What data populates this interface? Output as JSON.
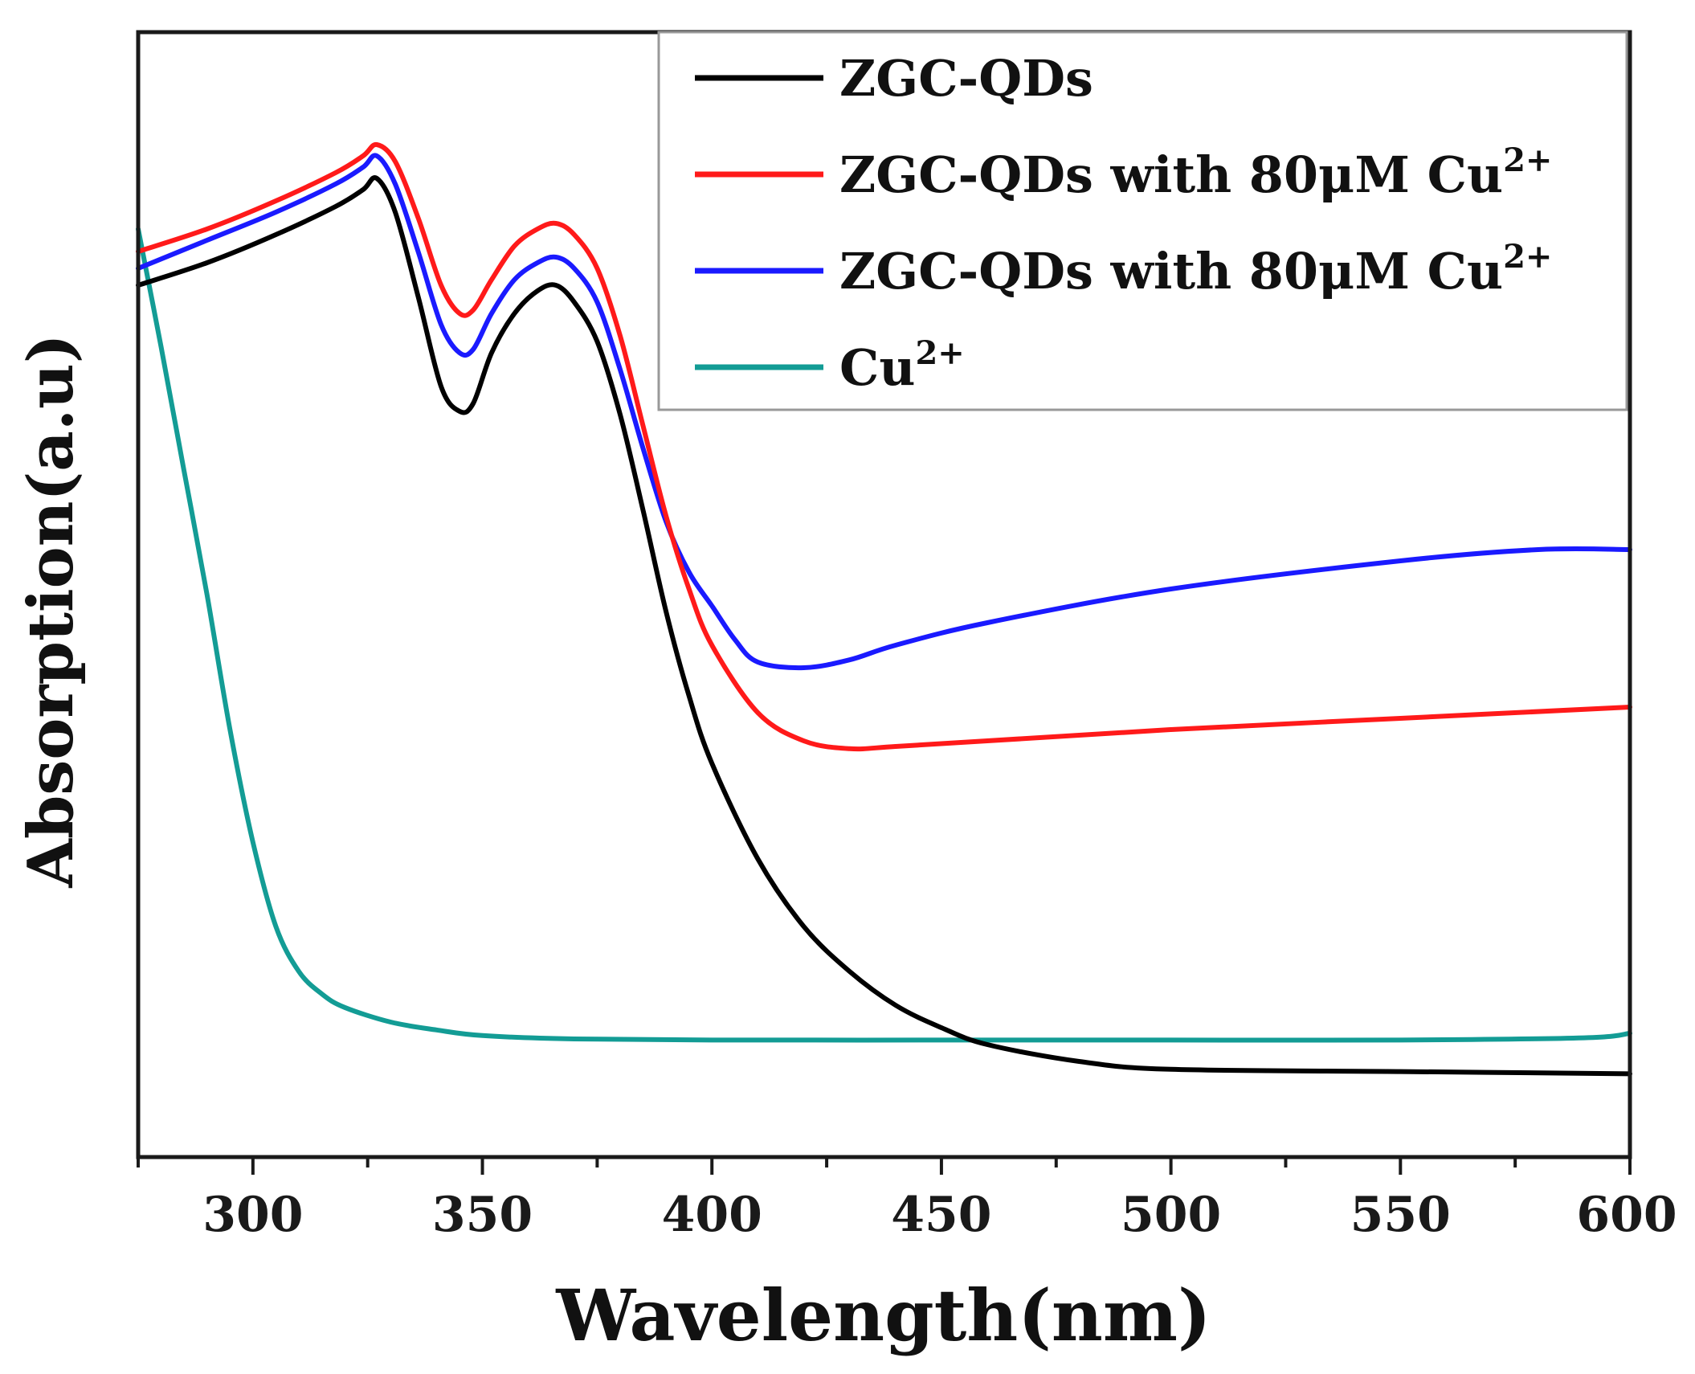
{
  "chart_data": {
    "type": "line",
    "title": "",
    "xlabel": "Wavelength(nm)",
    "ylabel": "Absorption(a.u)",
    "xlim": [
      275,
      600
    ],
    "ylim": [
      0,
      100
    ],
    "x_ticks": [
      300,
      350,
      400,
      450,
      500,
      550,
      600
    ],
    "x_minor_step": 25,
    "y_ticks_labeled": false,
    "grid": false,
    "legend_position": "top-right",
    "series": [
      {
        "name": "ZGC-QDs",
        "color": "#000000",
        "legend_main": "ZGC-QDs",
        "legend_sup": "",
        "x": [
          275,
          290,
          305,
          318,
          324,
          327,
          331,
          336,
          341,
          345,
          348,
          352,
          357,
          362,
          366,
          370,
          375,
          380,
          385,
          390,
          395,
          400,
          410,
          420,
          430,
          440,
          450,
          460,
          480,
          500,
          550,
          600
        ],
        "y": [
          77.5,
          79.5,
          82.0,
          84.5,
          86.0,
          87.0,
          84.0,
          76.5,
          68.5,
          66.3,
          67.0,
          71.5,
          75.0,
          77.0,
          77.5,
          76.0,
          72.5,
          66.0,
          57.5,
          48.5,
          41.0,
          35.0,
          26.5,
          20.5,
          16.5,
          13.5,
          11.5,
          10.0,
          8.5,
          7.8,
          7.6,
          7.4
        ]
      },
      {
        "name": "ZGC-QDs with 80μM Cu2+ (red)",
        "color": "#ff1a1a",
        "legend_main": "ZGC-QDs with 80μM Cu",
        "legend_sup": "2+",
        "x": [
          275,
          290,
          305,
          318,
          324,
          327,
          331,
          336,
          341,
          345,
          348,
          352,
          357,
          362,
          366,
          370,
          375,
          380,
          385,
          390,
          395,
          400,
          410,
          420,
          430,
          440,
          460,
          500,
          550,
          600
        ],
        "y": [
          80.5,
          82.5,
          85.0,
          87.5,
          89.0,
          90.0,
          88.5,
          83.5,
          77.5,
          75.0,
          75.3,
          78.0,
          81.0,
          82.5,
          83.0,
          82.0,
          79.0,
          73.0,
          65.0,
          57.0,
          50.5,
          45.5,
          39.5,
          37.0,
          36.3,
          36.5,
          37.0,
          38.0,
          39.0,
          40.0
        ]
      },
      {
        "name": "ZGC-QDs with 80μM Cu2+ (blue)",
        "color": "#1a1aff",
        "legend_main": "ZGC-QDs with 80μM Cu",
        "legend_sup": "2+",
        "x": [
          275,
          290,
          305,
          318,
          324,
          327,
          331,
          336,
          341,
          345,
          348,
          352,
          357,
          362,
          366,
          370,
          375,
          380,
          385,
          390,
          395,
          400,
          405,
          410,
          420,
          430,
          440,
          460,
          500,
          550,
          580,
          600
        ],
        "y": [
          79.0,
          81.5,
          84.0,
          86.5,
          88.0,
          89.0,
          86.5,
          80.5,
          74.0,
          71.5,
          71.8,
          75.0,
          78.0,
          79.5,
          80.0,
          79.0,
          76.0,
          70.0,
          63.0,
          56.5,
          52.0,
          49.0,
          46.0,
          44.0,
          43.5,
          44.2,
          45.5,
          47.5,
          50.5,
          53.0,
          54.0,
          54.0
        ]
      },
      {
        "name": "Cu2+",
        "color": "#139c95",
        "legend_main": "Cu",
        "legend_sup": "2+",
        "x": [
          275,
          280,
          285,
          290,
          295,
          300,
          305,
          310,
          315,
          320,
          330,
          340,
          350,
          370,
          400,
          450,
          500,
          550,
          590,
          600
        ],
        "y": [
          82.5,
          72.0,
          61.0,
          50.0,
          38.0,
          28.0,
          20.5,
          16.5,
          14.5,
          13.3,
          12.0,
          11.3,
          10.8,
          10.5,
          10.4,
          10.4,
          10.4,
          10.4,
          10.6,
          11.0
        ]
      }
    ]
  }
}
